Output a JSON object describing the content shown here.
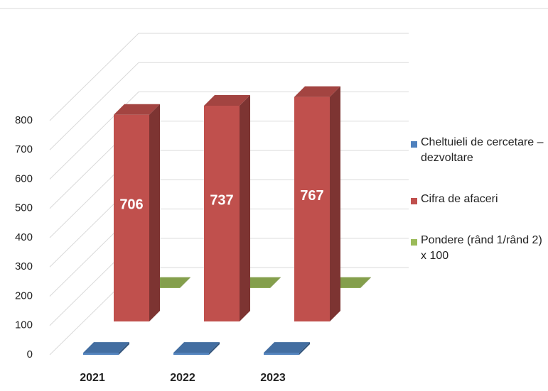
{
  "chart_data": {
    "type": "bar3d",
    "categories": [
      "2021",
      "2022",
      "2023"
    ],
    "series": [
      {
        "name": "Cheltuieli de cercetare – dezvoltare",
        "color": "#4f81bd",
        "values": [
          7,
          7,
          7
        ],
        "show_labels": false
      },
      {
        "name": "Cifra de afaceri",
        "color": "#c0504d",
        "values": [
          706,
          737,
          767
        ],
        "show_labels": true
      },
      {
        "name": "Pondere (rând 1/rând 2) x 100",
        "color": "#9bbb59",
        "values": [
          1,
          1,
          1
        ],
        "show_labels": false
      }
    ],
    "ylim": [
      0,
      800
    ],
    "yticks": [
      0,
      100,
      200,
      300,
      400,
      500,
      600,
      700,
      800
    ],
    "grid": true,
    "legend": "right"
  }
}
